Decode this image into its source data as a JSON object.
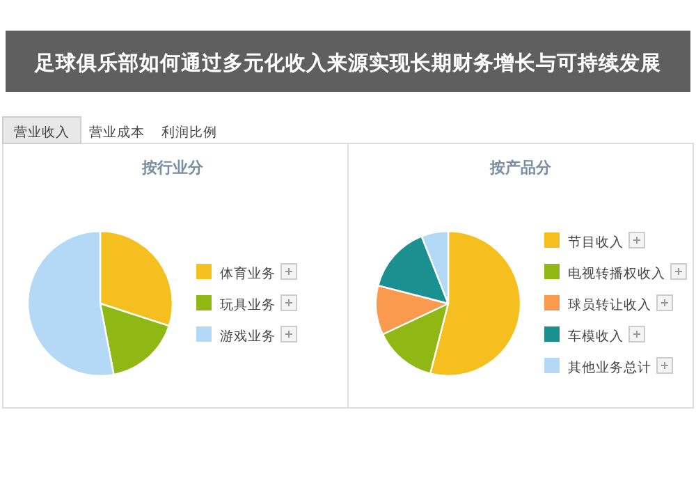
{
  "chart_data": [
    {
      "type": "pie",
      "title": "按行业分",
      "annotations": [
        "足球俱乐部如何通过多元化收入来源实现长期财务增长与可持续发展",
        "营业收入",
        "营业成本",
        "利润比例"
      ],
      "legend": "right",
      "categories": [
        "体育业务",
        "玩具业务",
        "游戏业务"
      ],
      "values": [
        30,
        17,
        53
      ],
      "colors": [
        "#f5c01f",
        "#8fb814",
        "#b3d9f7"
      ]
    },
    {
      "type": "pie",
      "title": "按产品分",
      "legend": "right",
      "categories": [
        "节目收入",
        "电视转播权收入",
        "球员转让收入",
        "车模收入",
        "其他业务总计"
      ],
      "values": [
        54,
        14,
        11,
        15,
        6
      ],
      "colors": [
        "#f5c01f",
        "#8fb814",
        "#f99a4e",
        "#1a9090",
        "#b3d9f7"
      ]
    }
  ]
}
